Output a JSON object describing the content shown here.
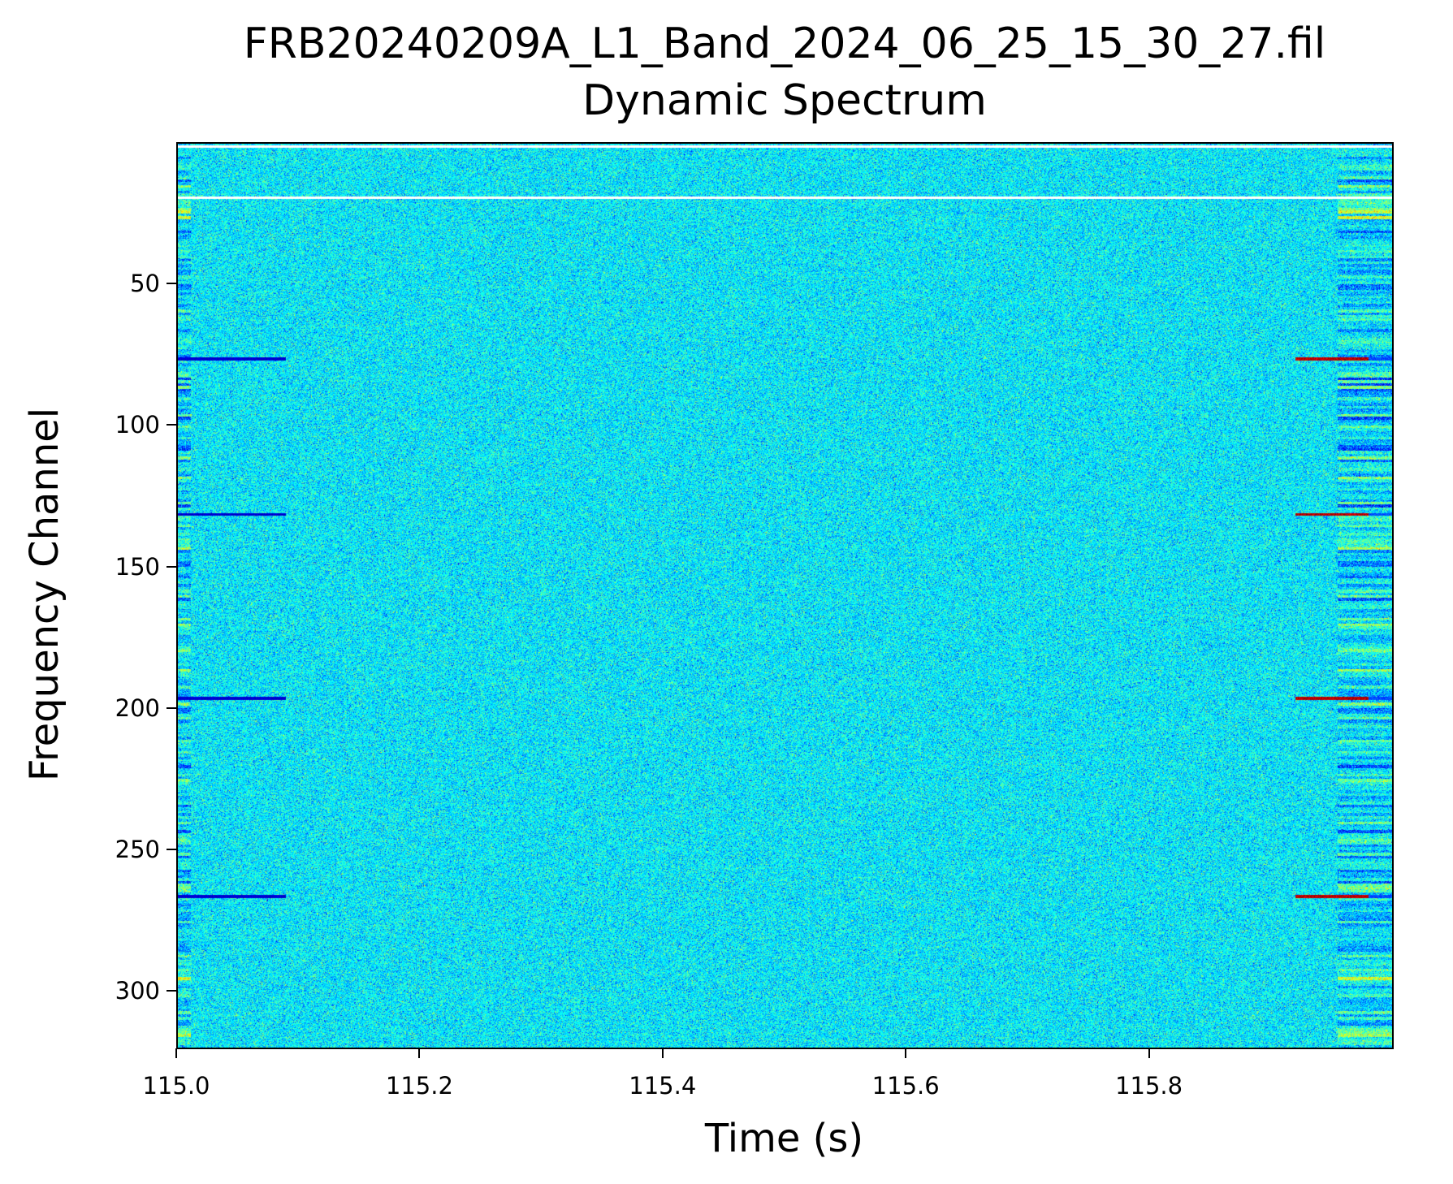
{
  "chart_data": {
    "type": "heatmap",
    "title": "FRB20240209A_L1_Band_2024_06_25_15_30_27.fil",
    "subtitle": "Dynamic Spectrum",
    "xlabel": "Time (s)",
    "ylabel": "Frequency Channel",
    "xlim": [
      115.0,
      116.0
    ],
    "ylim": [
      320,
      0
    ],
    "y_inverted": true,
    "xticks": [
      115.0,
      115.2,
      115.4,
      115.6,
      115.8
    ],
    "xtick_labels": [
      "115.0",
      "115.2",
      "115.4",
      "115.6",
      "115.8"
    ],
    "yticks": [
      50,
      100,
      150,
      200,
      250,
      300
    ],
    "ytick_labels": [
      "50",
      "100",
      "150",
      "200",
      "250",
      "300"
    ],
    "colormap": "jet",
    "grid": false,
    "features": {
      "blank_channels": [
        1,
        19
      ],
      "rfi_channels": [
        76,
        131,
        196,
        266
      ],
      "bright_rfi_time_range": [
        115.92,
        115.98
      ]
    }
  }
}
